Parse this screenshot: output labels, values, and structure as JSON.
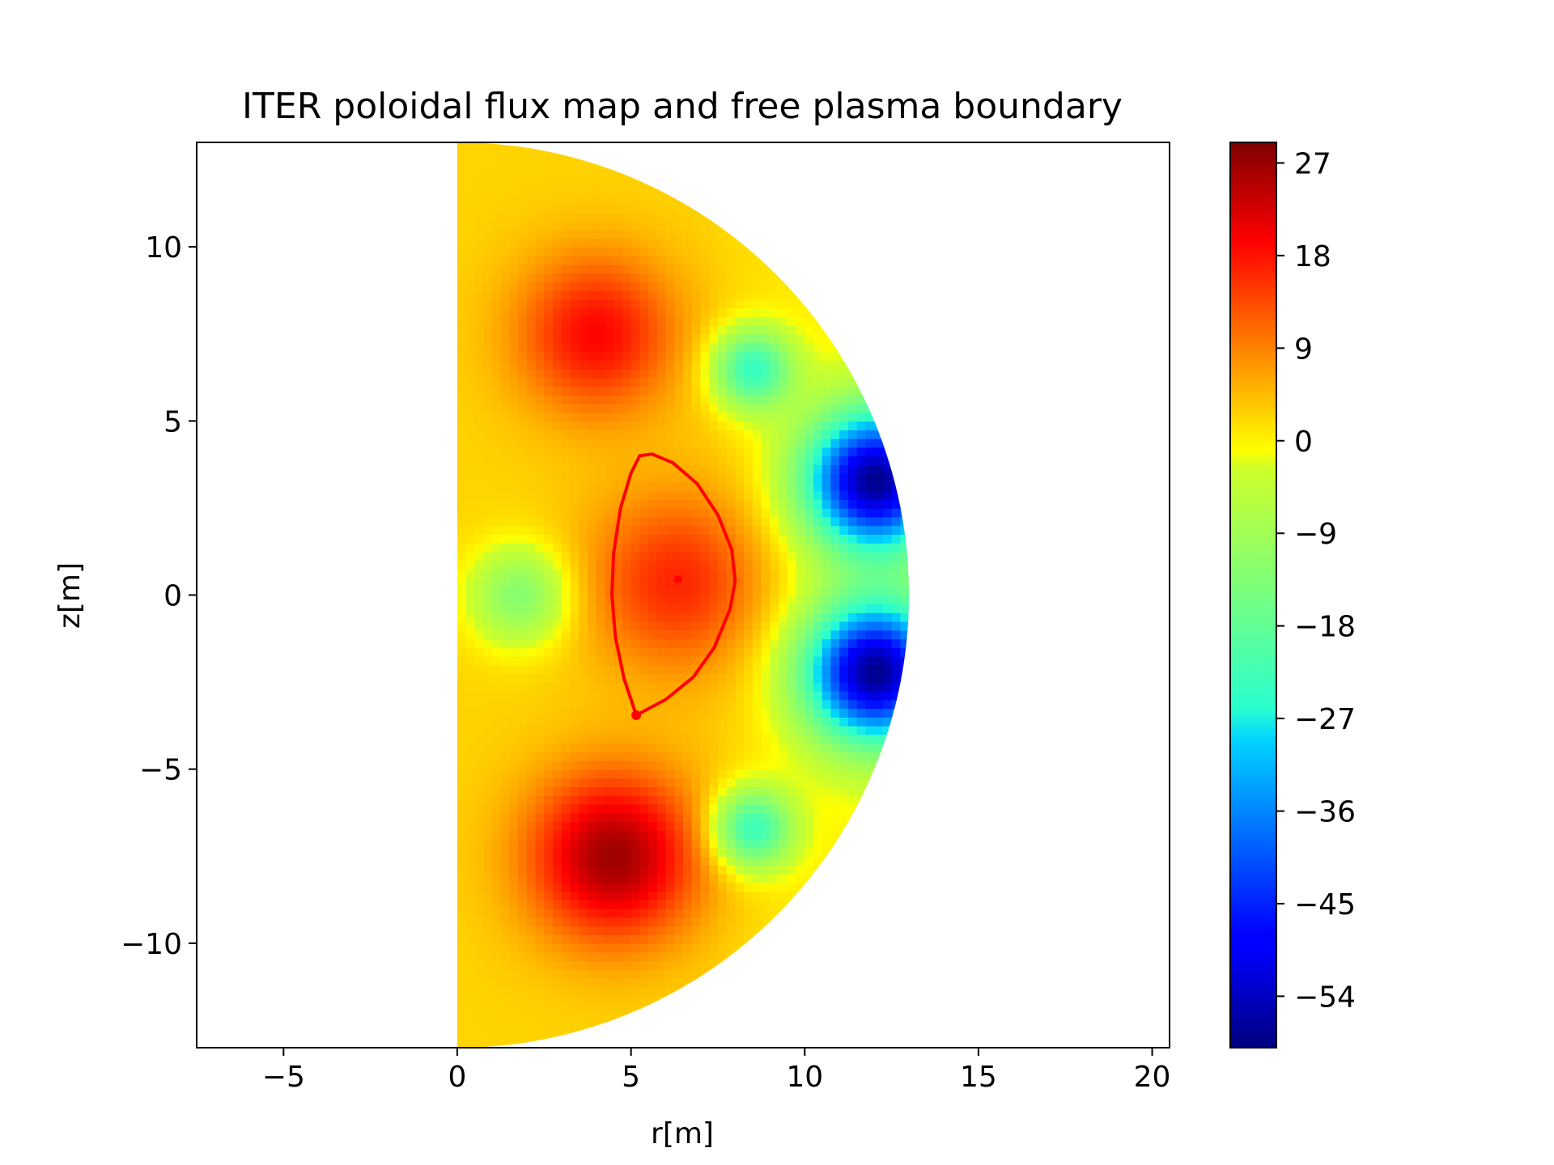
{
  "chart_data": {
    "type": "heatmap",
    "title": "ITER poloidal flux map and free plasma boundary",
    "xlabel": "r[m]",
    "ylabel": "z[m]",
    "xlim": [
      -7.5,
      20.5
    ],
    "ylim": [
      -13,
      13
    ],
    "x_ticks": [
      -5,
      0,
      5,
      10,
      15,
      20
    ],
    "y_ticks": [
      -10,
      -5,
      0,
      5,
      10
    ],
    "x_tick_labels": [
      "−5",
      "0",
      "5",
      "10",
      "15",
      "20"
    ],
    "y_tick_labels": [
      "−10",
      "−5",
      "0",
      "5",
      "10"
    ],
    "grid": false,
    "colormap": "jet",
    "domain": {
      "shape": "half-disk",
      "r_min": 0,
      "radius": 13
    },
    "flux_features": [
      {
        "r": 4.0,
        "z": 7.5,
        "value": 20,
        "width": 1.6
      },
      {
        "r": 4.5,
        "z": -7.5,
        "value": 28,
        "width": 1.7
      },
      {
        "r": 6.3,
        "z": 0.4,
        "value": 17,
        "width": 1.8
      },
      {
        "r": 1.8,
        "z": 0.0,
        "value": -14,
        "width": 1.0
      },
      {
        "r": 8.5,
        "z": 6.5,
        "value": -25,
        "width": 0.8
      },
      {
        "r": 8.5,
        "z": -6.7,
        "value": -25,
        "width": 0.8
      },
      {
        "r": 12.0,
        "z": 3.3,
        "value": -58,
        "width": 1.4
      },
      {
        "r": 12.0,
        "z": -2.2,
        "value": -58,
        "width": 1.4
      }
    ],
    "colorbar": {
      "min": -59,
      "max": 29,
      "ticks": [
        27,
        18,
        9,
        0,
        -9,
        -18,
        -27,
        -36,
        -45,
        -54
      ],
      "tick_labels": [
        "27",
        "18",
        "9",
        "0",
        "−9",
        "−18",
        "−27",
        "−36",
        "−45",
        "−54"
      ]
    },
    "plasma_boundary": {
      "color": "#ff0000",
      "points": [
        [
          5.15,
          -3.45
        ],
        [
          6.0,
          -3.0
        ],
        [
          6.8,
          -2.35
        ],
        [
          7.4,
          -1.5
        ],
        [
          7.85,
          -0.4
        ],
        [
          8.0,
          0.4
        ],
        [
          7.9,
          1.3
        ],
        [
          7.5,
          2.3
        ],
        [
          6.9,
          3.2
        ],
        [
          6.2,
          3.8
        ],
        [
          5.6,
          4.05
        ],
        [
          5.25,
          4.0
        ],
        [
          5.0,
          3.5
        ],
        [
          4.7,
          2.5
        ],
        [
          4.5,
          1.2
        ],
        [
          4.45,
          0.0
        ],
        [
          4.55,
          -1.2
        ],
        [
          4.8,
          -2.4
        ],
        [
          5.15,
          -3.45
        ]
      ],
      "x_point": [
        5.15,
        -3.45
      ],
      "magnetic_axis": [
        6.35,
        0.45
      ]
    }
  }
}
